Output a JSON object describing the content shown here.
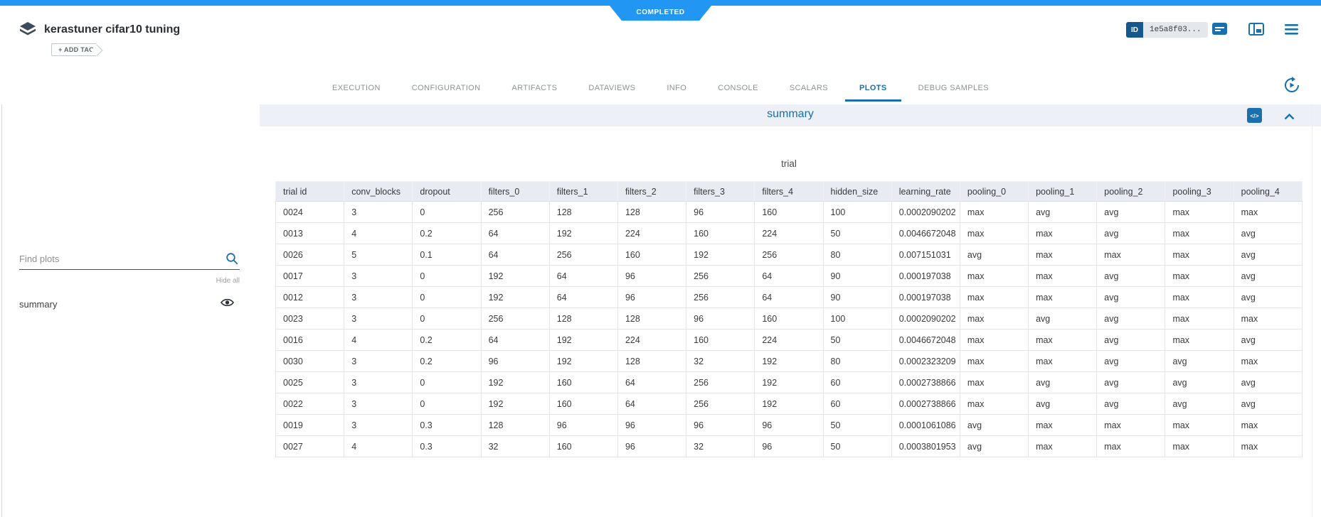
{
  "colors": {
    "topbar": "#2196f3",
    "accent": "#1a6fae",
    "id_badge": "#15578f",
    "band_bg": "#eef0f8",
    "table_header_bg": "#e9ebf2"
  },
  "status": {
    "label": "COMPLETED"
  },
  "header": {
    "title": "kerastuner cifar10 tuning",
    "add_tag_label": "+ ADD TAG",
    "id_label": "ID",
    "id_value": "1e5a8f03...",
    "icons": [
      "experiment-type-icon",
      "description-icon",
      "panel-layout-icon",
      "menu-icon"
    ]
  },
  "tabs": [
    "EXECUTION",
    "CONFIGURATION",
    "ARTIFACTS",
    "DATAVIEWS",
    "INFO",
    "CONSOLE",
    "SCALARS",
    "PLOTS",
    "DEBUG SAMPLES"
  ],
  "active_tab": "PLOTS",
  "sidebar": {
    "search_placeholder": "Find plots",
    "hide_all_label": "Hide all",
    "plots": [
      {
        "label": "summary",
        "visible": true
      }
    ]
  },
  "main": {
    "panel_title": "summary",
    "code_glyph": "</>",
    "table": {
      "title": "trial",
      "columns": [
        "trial id",
        "conv_blocks",
        "dropout",
        "filters_0",
        "filters_1",
        "filters_2",
        "filters_3",
        "filters_4",
        "hidden_size",
        "learning_rate",
        "pooling_0",
        "pooling_1",
        "pooling_2",
        "pooling_3",
        "pooling_4"
      ],
      "rows": [
        [
          "0024",
          "3",
          "0",
          "256",
          "128",
          "128",
          "96",
          "160",
          "100",
          "0.0002090202",
          "max",
          "avg",
          "avg",
          "max",
          "max"
        ],
        [
          "0013",
          "4",
          "0.2",
          "64",
          "192",
          "224",
          "160",
          "224",
          "50",
          "0.0046672048",
          "max",
          "max",
          "avg",
          "max",
          "avg"
        ],
        [
          "0026",
          "5",
          "0.1",
          "64",
          "256",
          "160",
          "192",
          "256",
          "80",
          "0.007151031",
          "avg",
          "max",
          "max",
          "max",
          "avg"
        ],
        [
          "0017",
          "3",
          "0",
          "192",
          "64",
          "96",
          "256",
          "64",
          "90",
          "0.000197038",
          "max",
          "max",
          "avg",
          "max",
          "avg"
        ],
        [
          "0012",
          "3",
          "0",
          "192",
          "64",
          "96",
          "256",
          "64",
          "90",
          "0.000197038",
          "max",
          "max",
          "avg",
          "max",
          "avg"
        ],
        [
          "0023",
          "3",
          "0",
          "256",
          "128",
          "128",
          "96",
          "160",
          "100",
          "0.0002090202",
          "max",
          "avg",
          "avg",
          "max",
          "max"
        ],
        [
          "0016",
          "4",
          "0.2",
          "64",
          "192",
          "224",
          "160",
          "224",
          "50",
          "0.0046672048",
          "max",
          "max",
          "avg",
          "max",
          "avg"
        ],
        [
          "0030",
          "3",
          "0.2",
          "96",
          "192",
          "128",
          "32",
          "192",
          "80",
          "0.0002323209",
          "max",
          "max",
          "avg",
          "avg",
          "max"
        ],
        [
          "0025",
          "3",
          "0",
          "192",
          "160",
          "64",
          "256",
          "192",
          "60",
          "0.0002738866",
          "max",
          "avg",
          "avg",
          "avg",
          "avg"
        ],
        [
          "0022",
          "3",
          "0",
          "192",
          "160",
          "64",
          "256",
          "192",
          "60",
          "0.0002738866",
          "max",
          "avg",
          "avg",
          "avg",
          "avg"
        ],
        [
          "0019",
          "3",
          "0.3",
          "128",
          "96",
          "96",
          "96",
          "96",
          "50",
          "0.0001061086",
          "avg",
          "max",
          "max",
          "max",
          "max"
        ],
        [
          "0027",
          "4",
          "0.3",
          "32",
          "160",
          "96",
          "32",
          "96",
          "50",
          "0.0003801953",
          "avg",
          "max",
          "max",
          "max",
          "max"
        ]
      ]
    }
  }
}
